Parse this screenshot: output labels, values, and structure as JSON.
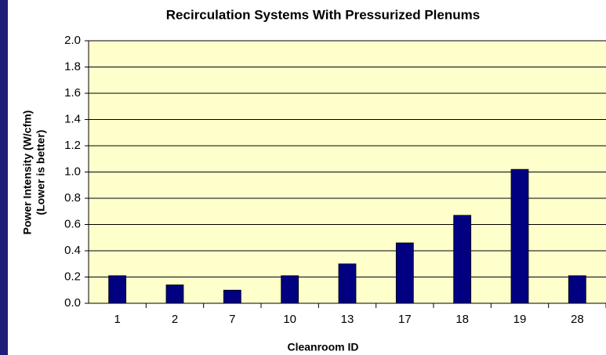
{
  "chart_data": {
    "type": "bar",
    "title": "Recirculation Systems With Pressurized Plenums",
    "xlabel": "Cleanroom ID",
    "ylabel": [
      "Power Intensity (W/cfm)",
      "(Lower is better)"
    ],
    "categories": [
      "1",
      "2",
      "7",
      "10",
      "13",
      "17",
      "18",
      "19",
      "28"
    ],
    "values": [
      0.21,
      0.14,
      0.1,
      0.21,
      0.3,
      0.46,
      0.67,
      1.02,
      0.21
    ],
    "color": "#000080",
    "ylim": [
      0,
      2
    ],
    "yticks": [
      {
        "value": 0,
        "label": "0.0"
      },
      0.2,
      0.4,
      0.6,
      0.8,
      {
        "value": 1,
        "label": "1.0"
      },
      1.2,
      1.4,
      1.6,
      1.8,
      {
        "value": 2,
        "label": "2.0"
      }
    ],
    "grid": true
  }
}
